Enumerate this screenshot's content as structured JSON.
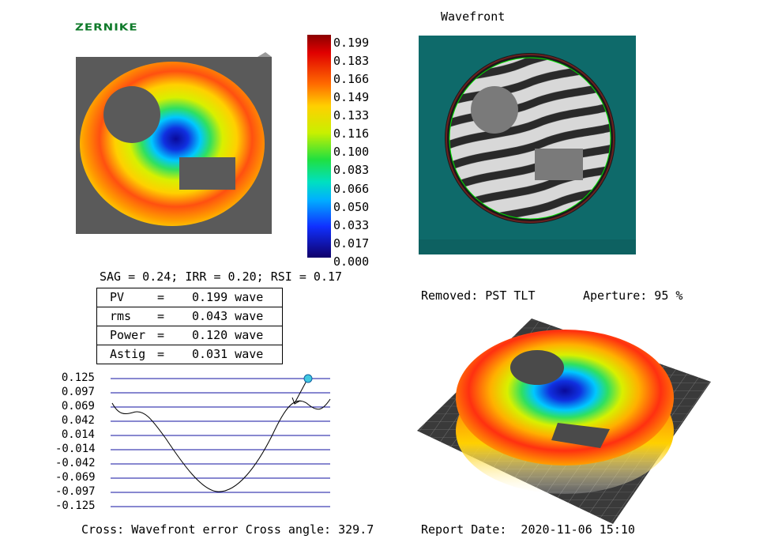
{
  "logo": "ZERNIKE",
  "wavefront_title": "Wavefront",
  "colorbar": {
    "labels": [
      "0.199",
      "0.183",
      "0.166",
      "0.149",
      "0.133",
      "0.116",
      "0.100",
      "0.083",
      "0.066",
      "0.050",
      "0.033",
      "0.017",
      "0.000"
    ]
  },
  "summary_line": "SAG = 0.24; IRR = 0.20; RSI = 0.17",
  "stats": [
    {
      "name": "PV",
      "eq": "=",
      "value": "0.199 wave"
    },
    {
      "name": "rms",
      "eq": "=",
      "value": "0.043 wave"
    },
    {
      "name": "Power",
      "eq": "=",
      "value": "0.120 wave"
    },
    {
      "name": "Astig",
      "eq": "=",
      "value": "0.031 wave"
    }
  ],
  "removed_line": "Removed: PST TLT",
  "aperture_line": "Aperture: 95 %",
  "cross_plot": {
    "y_ticks": [
      "0.125",
      "0.097",
      "0.069",
      "0.042",
      "0.014",
      "-0.014",
      "-0.042",
      "-0.069",
      "-0.097",
      "-0.125"
    ]
  },
  "footer": {
    "cross": "Cross: Wavefront error Cross angle: 329.7",
    "report": "Report Date:  2020-11-06 15:10"
  },
  "colors": {
    "teal_background": "#0e6a6a",
    "plot_grid": "#1010a0",
    "logo_green": "#0f7a2a"
  }
}
